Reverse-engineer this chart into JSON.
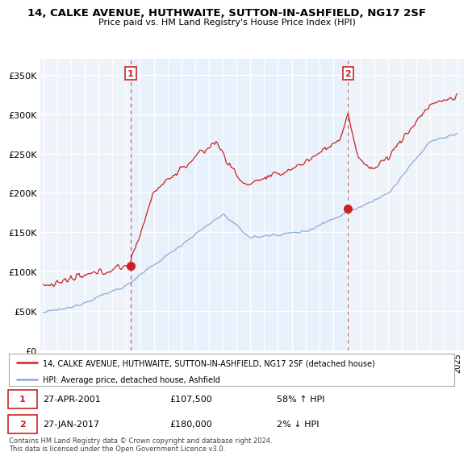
{
  "title": "14, CALKE AVENUE, HUTHWAITE, SUTTON-IN-ASHFIELD, NG17 2SF",
  "subtitle": "Price paid vs. HM Land Registry's House Price Index (HPI)",
  "legend_line1": "14, CALKE AVENUE, HUTHWAITE, SUTTON-IN-ASHFIELD, NG17 2SF (detached house)",
  "legend_line2": "HPI: Average price, detached house, Ashfield",
  "annotation1_date": "27-APR-2001",
  "annotation1_price": "£107,500",
  "annotation1_hpi": "58% ↑ HPI",
  "annotation2_date": "27-JAN-2017",
  "annotation2_price": "£180,000",
  "annotation2_hpi": "2% ↓ HPI",
  "footer": "Contains HM Land Registry data © Crown copyright and database right 2024.\nThis data is licensed under the Open Government Licence v3.0.",
  "red_color": "#cc2222",
  "blue_color": "#88aadd",
  "shade_color": "#ddeeff",
  "ylim": [
    0,
    370000
  ],
  "yticks": [
    0,
    50000,
    100000,
    150000,
    200000,
    250000,
    300000,
    350000
  ],
  "xlim_left": 1994.8,
  "xlim_right": 2025.5,
  "sale1_x": 2001.32,
  "sale1_y": 107500,
  "sale2_x": 2017.07,
  "sale2_y": 180000,
  "background_color": "#ffffff",
  "plot_bg_color": "#eef3fa"
}
